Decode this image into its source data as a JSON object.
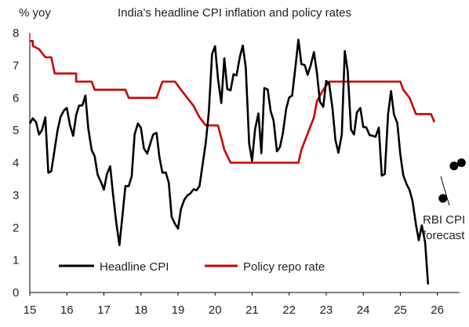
{
  "chart_data": {
    "type": "line",
    "title": "India's headline CPI inflation and policy rates",
    "ylabel": "% yoy",
    "ylim": [
      0,
      8
    ],
    "yticks": [
      "0",
      "1",
      "2",
      "3",
      "4",
      "5",
      "6",
      "7",
      "8"
    ],
    "xlim": [
      15,
      26.6
    ],
    "xticks": [
      "15",
      "16",
      "17",
      "18",
      "19",
      "20",
      "21",
      "22",
      "23",
      "24",
      "25",
      "26"
    ],
    "colors": {
      "cpi": "#000000",
      "repo": "#cc0000",
      "forecast": "#000000"
    },
    "series": [
      {
        "name": "Headline CPI",
        "points": [
          [
            15.0,
            5.2
          ],
          [
            15.08,
            5.37
          ],
          [
            15.17,
            5.25
          ],
          [
            15.25,
            4.87
          ],
          [
            15.33,
            5.01
          ],
          [
            15.42,
            5.4
          ],
          [
            15.5,
            3.69
          ],
          [
            15.58,
            3.74
          ],
          [
            15.67,
            4.41
          ],
          [
            15.75,
            5.0
          ],
          [
            15.83,
            5.41
          ],
          [
            15.92,
            5.61
          ],
          [
            16.0,
            5.69
          ],
          [
            16.08,
            5.18
          ],
          [
            16.17,
            4.83
          ],
          [
            16.25,
            5.47
          ],
          [
            16.33,
            5.76
          ],
          [
            16.42,
            5.77
          ],
          [
            16.5,
            6.07
          ],
          [
            16.58,
            5.05
          ],
          [
            16.67,
            4.39
          ],
          [
            16.75,
            4.2
          ],
          [
            16.83,
            3.63
          ],
          [
            16.92,
            3.41
          ],
          [
            17.0,
            3.17
          ],
          [
            17.08,
            3.65
          ],
          [
            17.17,
            3.89
          ],
          [
            17.25,
            2.99
          ],
          [
            17.33,
            2.18
          ],
          [
            17.42,
            1.46
          ],
          [
            17.5,
            2.36
          ],
          [
            17.58,
            3.28
          ],
          [
            17.67,
            3.28
          ],
          [
            17.75,
            3.58
          ],
          [
            17.83,
            4.88
          ],
          [
            17.92,
            5.21
          ],
          [
            18.0,
            5.07
          ],
          [
            18.08,
            4.44
          ],
          [
            18.17,
            4.28
          ],
          [
            18.25,
            4.58
          ],
          [
            18.33,
            4.87
          ],
          [
            18.42,
            4.92
          ],
          [
            18.5,
            4.17
          ],
          [
            18.58,
            3.69
          ],
          [
            18.67,
            3.7
          ],
          [
            18.75,
            3.38
          ],
          [
            18.83,
            2.33
          ],
          [
            18.92,
            2.11
          ],
          [
            19.0,
            1.97
          ],
          [
            19.08,
            2.57
          ],
          [
            19.17,
            2.86
          ],
          [
            19.25,
            2.99
          ],
          [
            19.33,
            3.05
          ],
          [
            19.42,
            3.18
          ],
          [
            19.5,
            3.15
          ],
          [
            19.58,
            3.28
          ],
          [
            19.67,
            3.99
          ],
          [
            19.75,
            4.62
          ],
          [
            19.83,
            5.54
          ],
          [
            19.92,
            7.35
          ],
          [
            20.0,
            7.59
          ],
          [
            20.08,
            6.58
          ],
          [
            20.17,
            5.84
          ],
          [
            20.25,
            7.22
          ],
          [
            20.33,
            6.27
          ],
          [
            20.42,
            6.23
          ],
          [
            20.5,
            6.73
          ],
          [
            20.58,
            6.69
          ],
          [
            20.67,
            7.27
          ],
          [
            20.75,
            7.61
          ],
          [
            20.83,
            6.93
          ],
          [
            20.92,
            4.59
          ],
          [
            21.0,
            4.06
          ],
          [
            21.08,
            5.03
          ],
          [
            21.17,
            5.52
          ],
          [
            21.25,
            4.29
          ],
          [
            21.33,
            6.3
          ],
          [
            21.42,
            6.26
          ],
          [
            21.5,
            5.59
          ],
          [
            21.58,
            5.3
          ],
          [
            21.67,
            4.35
          ],
          [
            21.75,
            4.48
          ],
          [
            21.83,
            4.91
          ],
          [
            21.92,
            5.66
          ],
          [
            22.0,
            6.01
          ],
          [
            22.08,
            6.07
          ],
          [
            22.17,
            6.95
          ],
          [
            22.25,
            7.79
          ],
          [
            22.33,
            7.04
          ],
          [
            22.42,
            7.01
          ],
          [
            22.5,
            6.71
          ],
          [
            22.58,
            7.0
          ],
          [
            22.67,
            7.41
          ],
          [
            22.75,
            6.77
          ],
          [
            22.83,
            5.88
          ],
          [
            22.92,
            5.72
          ],
          [
            23.0,
            6.52
          ],
          [
            23.08,
            6.44
          ],
          [
            23.17,
            5.66
          ],
          [
            23.25,
            4.7
          ],
          [
            23.33,
            4.31
          ],
          [
            23.42,
            4.87
          ],
          [
            23.5,
            7.44
          ],
          [
            23.58,
            6.83
          ],
          [
            23.67,
            5.02
          ],
          [
            23.75,
            4.87
          ],
          [
            23.83,
            5.55
          ],
          [
            23.92,
            5.69
          ],
          [
            24.0,
            5.1
          ],
          [
            24.08,
            5.09
          ],
          [
            24.17,
            4.85
          ],
          [
            24.25,
            4.83
          ],
          [
            24.33,
            4.8
          ],
          [
            24.42,
            5.08
          ],
          [
            24.5,
            3.6
          ],
          [
            24.58,
            3.65
          ],
          [
            24.67,
            5.49
          ],
          [
            24.75,
            6.21
          ],
          [
            24.83,
            5.48
          ],
          [
            24.92,
            5.22
          ],
          [
            25.0,
            4.26
          ],
          [
            25.08,
            3.61
          ],
          [
            25.17,
            3.34
          ],
          [
            25.25,
            3.16
          ],
          [
            25.33,
            2.82
          ],
          [
            25.42,
            2.1
          ],
          [
            25.5,
            1.61
          ],
          [
            25.58,
            2.07
          ],
          [
            25.67,
            1.54
          ],
          [
            25.75,
            0.25
          ]
        ]
      },
      {
        "name": "Policy repo rate",
        "points": [
          [
            15.0,
            7.75
          ],
          [
            15.08,
            7.75
          ],
          [
            15.08,
            7.6
          ],
          [
            15.25,
            7.5
          ],
          [
            15.42,
            7.25
          ],
          [
            15.58,
            7.25
          ],
          [
            15.67,
            6.75
          ],
          [
            16.25,
            6.75
          ],
          [
            16.25,
            6.5
          ],
          [
            16.67,
            6.5
          ],
          [
            16.75,
            6.25
          ],
          [
            17.58,
            6.25
          ],
          [
            17.67,
            6.0
          ],
          [
            18.42,
            6.0
          ],
          [
            18.5,
            6.25
          ],
          [
            18.58,
            6.5
          ],
          [
            18.92,
            6.5
          ],
          [
            19.08,
            6.25
          ],
          [
            19.25,
            6.0
          ],
          [
            19.42,
            5.75
          ],
          [
            19.58,
            5.4
          ],
          [
            19.75,
            5.15
          ],
          [
            20.08,
            5.15
          ],
          [
            20.25,
            4.4
          ],
          [
            20.42,
            4.0
          ],
          [
            22.25,
            4.0
          ],
          [
            22.33,
            4.4
          ],
          [
            22.5,
            4.9
          ],
          [
            22.67,
            5.4
          ],
          [
            22.75,
            5.9
          ],
          [
            22.92,
            6.25
          ],
          [
            23.08,
            6.5
          ],
          [
            25.0,
            6.5
          ],
          [
            25.08,
            6.25
          ],
          [
            25.25,
            6.0
          ],
          [
            25.42,
            5.5
          ],
          [
            25.83,
            5.5
          ],
          [
            25.92,
            5.25
          ]
        ]
      },
      {
        "name": "RBI CPI forecast",
        "points": [
          [
            26.15,
            2.9
          ],
          [
            26.45,
            3.9
          ],
          [
            26.65,
            4.0
          ]
        ]
      }
    ],
    "legend": [
      "Headline CPI",
      "Policy repo rate"
    ],
    "annotation": [
      "RBI CPI",
      "forecast"
    ],
    "grid": false
  }
}
